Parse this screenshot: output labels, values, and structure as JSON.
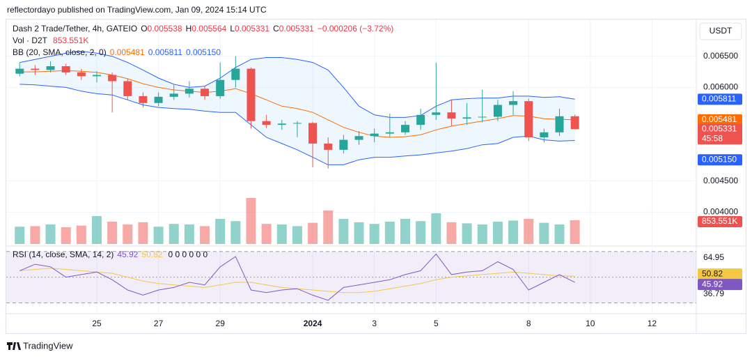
{
  "header": {
    "author_line": "reflectordayo published on TradingView.com, Jan 09, 2024 15:14 UTC"
  },
  "footer": {
    "brand": "TradingView"
  },
  "chart_data": {
    "type": "candlestick",
    "title": "Dash 2 Trade/Tether, 4h, GATEIO",
    "ohlc_labels": [
      "O",
      "H",
      "L",
      "C"
    ],
    "change": "−0.000206 (−3.72%)",
    "currency": "USDT",
    "countdown": "45:58",
    "up_color": "#26a69a",
    "down_color": "#ef5350",
    "xlim": [
      -1.912,
      20.436
    ],
    "xticks": [
      {
        "value": 1,
        "label": "25"
      },
      {
        "value": 3,
        "label": "27"
      },
      {
        "value": 5,
        "label": "29"
      },
      {
        "value": 8,
        "label": "2024"
      },
      {
        "value": 10,
        "label": "3"
      },
      {
        "value": 12,
        "label": "5"
      },
      {
        "value": 15,
        "label": "8"
      },
      {
        "value": 17,
        "label": "10"
      },
      {
        "value": 19,
        "label": "12"
      }
    ],
    "ylim": [
      0.00349,
      0.0071
    ],
    "yticks": [
      {
        "value": 0.0065,
        "label": "0.006500"
      },
      {
        "value": 0.006,
        "label": "0.006000"
      },
      {
        "value": 0.0045,
        "label": "0.004500"
      },
      {
        "value": 0.004,
        "label": "0.004000"
      }
    ],
    "grid": true,
    "x": [
      -1.5,
      -1,
      -0.5,
      0,
      0.5,
      1,
      1.5,
      2,
      2.5,
      3,
      3.5,
      4,
      4.5,
      5,
      5.5,
      6,
      6.5,
      7,
      7.5,
      8,
      8.5,
      9,
      9.5,
      10,
      10.5,
      11,
      11.5,
      12,
      12.5,
      13,
      13.5,
      14,
      14.5,
      15,
      15.5,
      16,
      16.5
    ],
    "open": [
      0.00622,
      0.0063,
      0.00628,
      0.00634,
      0.00624,
      0.00618,
      0.0062,
      0.0061,
      0.00586,
      0.00575,
      0.00585,
      0.0059,
      0.00598,
      0.00586,
      0.00612,
      0.0063,
      0.00546,
      0.0054,
      0.00542,
      0.00543,
      0.0051,
      0.005,
      0.00516,
      0.00522,
      0.00526,
      0.00528,
      0.0054,
      0.00556,
      0.0056,
      0.0055,
      0.00552,
      0.00553,
      0.00572,
      0.00578,
      0.0052,
      0.00528,
      0.005538
    ],
    "high": [
      0.0064,
      0.00636,
      0.00642,
      0.00638,
      0.0063,
      0.00626,
      0.00624,
      0.00614,
      0.00592,
      0.00592,
      0.00604,
      0.0061,
      0.00602,
      0.0064,
      0.0065,
      0.00632,
      0.00556,
      0.00548,
      0.00546,
      0.00545,
      0.0052,
      0.00524,
      0.0053,
      0.00534,
      0.00558,
      0.00546,
      0.00566,
      0.0064,
      0.0058,
      0.00575,
      0.00596,
      0.0058,
      0.00594,
      0.00582,
      0.00534,
      0.00566,
      0.005564
    ],
    "low": [
      0.00618,
      0.0062,
      0.00624,
      0.0062,
      0.00612,
      0.00608,
      0.0056,
      0.0058,
      0.00568,
      0.0057,
      0.0058,
      0.00584,
      0.0058,
      0.00582,
      0.006,
      0.00534,
      0.00535,
      0.00532,
      0.0052,
      0.00472,
      0.0047,
      0.00494,
      0.00508,
      0.00512,
      0.0052,
      0.00524,
      0.00532,
      0.00548,
      0.00538,
      0.0054,
      0.00544,
      0.00546,
      0.00556,
      0.00514,
      0.00512,
      0.00522,
      0.005331
    ],
    "close": [
      0.0063,
      0.00628,
      0.00634,
      0.00624,
      0.00618,
      0.0062,
      0.0061,
      0.00586,
      0.00575,
      0.00585,
      0.0059,
      0.00598,
      0.00586,
      0.00612,
      0.0063,
      0.00546,
      0.0054,
      0.00542,
      0.00543,
      0.0051,
      0.005,
      0.00516,
      0.00522,
      0.00526,
      0.00528,
      0.0054,
      0.00556,
      0.0056,
      0.0055,
      0.00552,
      0.00553,
      0.00572,
      0.00578,
      0.0052,
      0.00528,
      0.005538,
      0.005331
    ],
    "bb": {
      "name": "BB (20, SMA, close, 2, 0)",
      "upper_color": "#2962ff",
      "middle_color": "#ff6d00",
      "lower_color": "#2962ff",
      "upper": [
        0.0064,
        0.00645,
        0.0065,
        0.00655,
        0.00658,
        0.00655,
        0.0065,
        0.0064,
        0.00628,
        0.00615,
        0.00605,
        0.006,
        0.00602,
        0.00615,
        0.00632,
        0.00645,
        0.00648,
        0.00648,
        0.00645,
        0.0064,
        0.00628,
        0.006,
        0.0057,
        0.00556,
        0.00552,
        0.00552,
        0.00555,
        0.0057,
        0.0058,
        0.00582,
        0.00583,
        0.00583,
        0.00586,
        0.00586,
        0.00584,
        0.00585,
        0.005811
      ],
      "middle": [
        0.00625,
        0.00625,
        0.00626,
        0.00627,
        0.00626,
        0.00624,
        0.0062,
        0.00614,
        0.00606,
        0.006,
        0.00596,
        0.00594,
        0.00592,
        0.00594,
        0.00598,
        0.0059,
        0.0058,
        0.0057,
        0.00566,
        0.0056,
        0.00548,
        0.00536,
        0.00528,
        0.00522,
        0.0052,
        0.00521,
        0.00524,
        0.00532,
        0.00538,
        0.00542,
        0.00546,
        0.0055,
        0.00555,
        0.00554,
        0.0055,
        0.00549,
        0.005481
      ],
      "lower": [
        0.00605,
        0.00604,
        0.00602,
        0.006,
        0.00594,
        0.0059,
        0.00588,
        0.0058,
        0.00572,
        0.00568,
        0.00566,
        0.00565,
        0.00562,
        0.0056,
        0.0056,
        0.0054,
        0.0052,
        0.0051,
        0.005,
        0.00488,
        0.00476,
        0.00476,
        0.00484,
        0.00488,
        0.00488,
        0.0049,
        0.00492,
        0.00495,
        0.00498,
        0.00502,
        0.00508,
        0.0051,
        0.0052,
        0.00522,
        0.00516,
        0.00514,
        0.00515
      ],
      "last_labels": [
        "0.005481",
        "0.005811",
        "0.005150"
      ]
    },
    "volume": {
      "name": "Vol · D2T",
      "ylim": [
        0,
        2200
      ],
      "last_label": "853.551K",
      "values": [
        620,
        640,
        700,
        600,
        660,
        1000,
        800,
        700,
        780,
        620,
        720,
        700,
        640,
        900,
        820,
        1650,
        720,
        700,
        640,
        760,
        1200,
        900,
        780,
        720,
        800,
        900,
        820,
        1100,
        780,
        740,
        700,
        800,
        840,
        900,
        760,
        700,
        853.551
      ]
    },
    "rsi": {
      "name": "RSI (14, close, SMA, 14, 2)",
      "ylim": [
        21.6,
        72
      ],
      "levels": [
        70,
        50,
        30
      ],
      "extra": "0 0 0 0 0 0",
      "color": "#7e57c2",
      "ma_color": "#f5c842",
      "axis_labels": [
        64.95,
        36.79
      ],
      "values": [
        55,
        60,
        58,
        50,
        52,
        54,
        48,
        40,
        36,
        40,
        42,
        46,
        44,
        58,
        66,
        40,
        38,
        40,
        41,
        36,
        32,
        42,
        44,
        46,
        48,
        52,
        55,
        68,
        52,
        54,
        55,
        62,
        56,
        40,
        46,
        52,
        45.92
      ],
      "ma": [
        55,
        56,
        57,
        56,
        55,
        54,
        53,
        50,
        47,
        45,
        44,
        43,
        42,
        44,
        46,
        46,
        44,
        42,
        41,
        40,
        39,
        38,
        38,
        39,
        41,
        43,
        45,
        48,
        50,
        51,
        52,
        53,
        54,
        53,
        52,
        51,
        50.82
      ]
    }
  }
}
